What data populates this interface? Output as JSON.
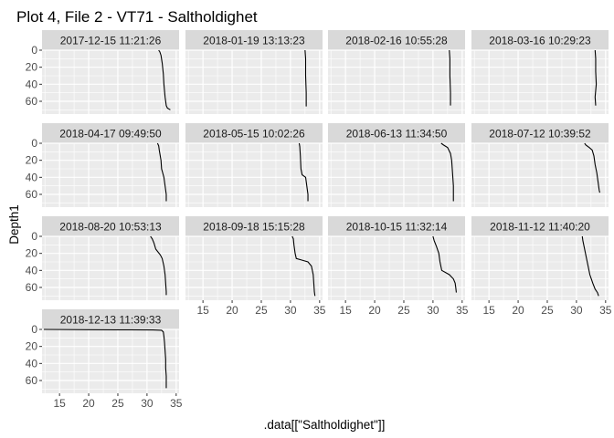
{
  "chart_data": {
    "type": "line",
    "title": "Plot 4, File 2 - VT71  -  Saltholdighet",
    "xlabel": ".data[[\"Saltholdighet\"]]",
    "ylabel": "Depth1",
    "xlim": [
      12,
      35.5
    ],
    "ylim": [
      0,
      75
    ],
    "y_reversed": true,
    "x_ticks": [
      15,
      20,
      25,
      30,
      35
    ],
    "x_tick_labels": [
      "15",
      "20",
      "25",
      "30",
      "35"
    ],
    "y_ticks": [
      0,
      20,
      40,
      60
    ],
    "y_tick_labels": [
      "0",
      "20",
      "40",
      "60"
    ],
    "layout": "facet_wrap 4 columns",
    "grid": true,
    "colors": {
      "panel_bg": "#ebebeb",
      "grid": "#ffffff",
      "strip_bg": "#d9d9d9",
      "line": "#000000"
    },
    "panels": [
      {
        "label": "2017-12-15 11:21:26",
        "points": [
          [
            32.0,
            0
          ],
          [
            32.2,
            2
          ],
          [
            32.4,
            6
          ],
          [
            32.6,
            15
          ],
          [
            32.8,
            28
          ],
          [
            32.9,
            40
          ],
          [
            33.1,
            55
          ],
          [
            33.3,
            65
          ],
          [
            33.5,
            68
          ],
          [
            34.0,
            70
          ]
        ]
      },
      {
        "label": "2018-01-19 13:13:23",
        "points": [
          [
            32.5,
            0
          ],
          [
            32.6,
            10
          ],
          [
            32.6,
            30
          ],
          [
            32.7,
            50
          ],
          [
            32.7,
            60
          ],
          [
            32.7,
            66
          ]
        ]
      },
      {
        "label": "2018-02-16 10:55:28",
        "points": [
          [
            32.8,
            0
          ],
          [
            32.9,
            10
          ],
          [
            32.9,
            30
          ],
          [
            33.0,
            50
          ],
          [
            33.0,
            65
          ]
        ]
      },
      {
        "label": "2018-03-16 10:29:23",
        "points": [
          [
            33.2,
            0
          ],
          [
            33.3,
            10
          ],
          [
            33.3,
            25
          ],
          [
            33.4,
            40
          ],
          [
            33.2,
            55
          ],
          [
            33.3,
            65
          ]
        ]
      },
      {
        "label": "2018-04-17 09:49:50",
        "points": [
          [
            31.8,
            0
          ],
          [
            32.0,
            3
          ],
          [
            32.1,
            8
          ],
          [
            32.4,
            20
          ],
          [
            32.5,
            30
          ],
          [
            32.9,
            40
          ],
          [
            33.1,
            50
          ],
          [
            33.3,
            60
          ],
          [
            33.3,
            68
          ]
        ]
      },
      {
        "label": "2018-05-15 10:02:26",
        "points": [
          [
            31.5,
            0
          ],
          [
            31.6,
            4
          ],
          [
            31.7,
            15
          ],
          [
            31.8,
            30
          ],
          [
            32.0,
            37
          ],
          [
            32.6,
            40
          ],
          [
            32.8,
            50
          ],
          [
            33.0,
            60
          ],
          [
            33.0,
            68
          ]
        ]
      },
      {
        "label": "2018-06-13 11:34:50",
        "points": [
          [
            31.4,
            0
          ],
          [
            31.8,
            2
          ],
          [
            32.5,
            5
          ],
          [
            33.0,
            12
          ],
          [
            33.2,
            20
          ],
          [
            33.3,
            30
          ],
          [
            33.4,
            40
          ],
          [
            33.5,
            50
          ],
          [
            33.5,
            60
          ],
          [
            33.5,
            68
          ]
        ]
      },
      {
        "label": "2018-07-12 10:39:52",
        "points": [
          [
            31.4,
            0
          ],
          [
            31.6,
            2
          ],
          [
            32.2,
            5
          ],
          [
            32.7,
            8
          ],
          [
            33.0,
            15
          ],
          [
            33.2,
            25
          ],
          [
            33.5,
            35
          ],
          [
            33.7,
            45
          ],
          [
            33.9,
            55
          ],
          [
            34.0,
            58
          ]
        ]
      },
      {
        "label": "2018-08-20 10:53:13",
        "points": [
          [
            30.6,
            0
          ],
          [
            30.9,
            3
          ],
          [
            31.2,
            8
          ],
          [
            31.5,
            15
          ],
          [
            32.3,
            22
          ],
          [
            32.6,
            26
          ],
          [
            32.9,
            35
          ],
          [
            33.1,
            45
          ],
          [
            33.2,
            55
          ],
          [
            33.3,
            65
          ],
          [
            33.3,
            69
          ]
        ]
      },
      {
        "label": "2018-09-18 15:15:28",
        "points": [
          [
            30.3,
            0
          ],
          [
            30.5,
            3
          ],
          [
            30.6,
            10
          ],
          [
            30.8,
            20
          ],
          [
            31.0,
            26
          ],
          [
            32.0,
            28
          ],
          [
            33.0,
            30
          ],
          [
            33.6,
            35
          ],
          [
            33.9,
            45
          ],
          [
            34.0,
            55
          ],
          [
            34.1,
            65
          ],
          [
            34.2,
            70
          ]
        ]
      },
      {
        "label": "2018-10-15 11:32:14",
        "points": [
          [
            30.0,
            0
          ],
          [
            30.2,
            5
          ],
          [
            30.6,
            12
          ],
          [
            31.0,
            20
          ],
          [
            31.2,
            30
          ],
          [
            31.5,
            40
          ],
          [
            32.8,
            45
          ],
          [
            33.5,
            50
          ],
          [
            33.8,
            55
          ],
          [
            33.9,
            60
          ],
          [
            34.0,
            66
          ]
        ]
      },
      {
        "label": "2018-11-12 11:40:20",
        "points": [
          [
            31.0,
            0
          ],
          [
            31.1,
            5
          ],
          [
            31.4,
            15
          ],
          [
            31.7,
            25
          ],
          [
            32.0,
            35
          ],
          [
            32.3,
            45
          ],
          [
            32.8,
            55
          ],
          [
            33.2,
            62
          ],
          [
            33.6,
            66
          ],
          [
            33.8,
            70
          ]
        ]
      },
      {
        "label": "2018-12-13 11:39:33",
        "points": [
          [
            12.3,
            0
          ],
          [
            20.0,
            0.3
          ],
          [
            27.0,
            0.5
          ],
          [
            31.0,
            0.6
          ],
          [
            32.5,
            1
          ],
          [
            32.8,
            3
          ],
          [
            32.9,
            8
          ],
          [
            33.0,
            15
          ],
          [
            33.1,
            25
          ],
          [
            33.2,
            35
          ],
          [
            33.2,
            45
          ],
          [
            33.3,
            55
          ],
          [
            33.3,
            65
          ],
          [
            33.3,
            69
          ]
        ]
      }
    ]
  }
}
